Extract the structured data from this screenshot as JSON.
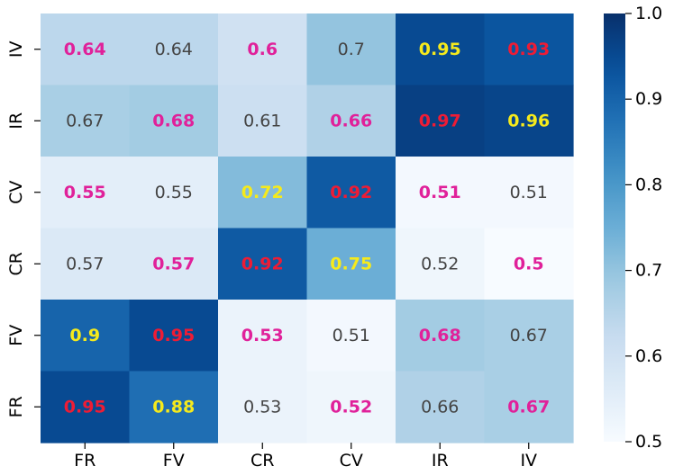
{
  "chart_data": {
    "type": "heatmap",
    "x_categories": [
      "FR",
      "FV",
      "CR",
      "CV",
      "IR",
      "IV"
    ],
    "y_categories": [
      "IV",
      "IR",
      "CV",
      "CR",
      "FV",
      "FR"
    ],
    "values": [
      [
        0.64,
        0.64,
        0.6,
        0.7,
        0.95,
        0.93
      ],
      [
        0.67,
        0.68,
        0.61,
        0.66,
        0.97,
        0.96
      ],
      [
        0.55,
        0.55,
        0.72,
        0.92,
        0.51,
        0.51
      ],
      [
        0.57,
        0.57,
        0.92,
        0.75,
        0.52,
        0.5
      ],
      [
        0.9,
        0.95,
        0.53,
        0.51,
        0.68,
        0.67
      ],
      [
        0.95,
        0.88,
        0.53,
        0.52,
        0.66,
        0.67
      ]
    ],
    "labels": [
      [
        "0.64",
        "0.64",
        "0.6",
        "0.7",
        "0.95",
        "0.93"
      ],
      [
        "0.67",
        "0.68",
        "0.61",
        "0.66",
        "0.97",
        "0.96"
      ],
      [
        "0.55",
        "0.55",
        "0.72",
        "0.92",
        "0.51",
        "0.51"
      ],
      [
        "0.57",
        "0.57",
        "0.92",
        "0.75",
        "0.52",
        "0.5"
      ],
      [
        "0.9",
        "0.95",
        "0.53",
        "0.51",
        "0.68",
        "0.67"
      ],
      [
        "0.95",
        "0.88",
        "0.53",
        "0.52",
        "0.66",
        "0.67"
      ]
    ],
    "label_style": [
      [
        "magenta",
        "plain",
        "magenta",
        "plain",
        "yellow",
        "red"
      ],
      [
        "plain",
        "magenta",
        "plain",
        "magenta",
        "red",
        "yellow"
      ],
      [
        "magenta",
        "plain",
        "yellow",
        "red",
        "magenta",
        "plain"
      ],
      [
        "plain",
        "magenta",
        "red",
        "yellow",
        "plain",
        "magenta"
      ],
      [
        "yellow",
        "red",
        "magenta",
        "plain",
        "magenta",
        "plain"
      ],
      [
        "red",
        "yellow",
        "plain",
        "magenta",
        "plain",
        "magenta"
      ]
    ],
    "label_colors": {
      "plain": "#444444",
      "magenta": "#e0219a",
      "yellow": "#f5ea1c",
      "red": "#ee1c35"
    },
    "colorbar": {
      "min": 0.5,
      "max": 1.0,
      "ticks": [
        0.5,
        0.6,
        0.7,
        0.8,
        0.9,
        1.0
      ],
      "tick_labels": [
        "0.5",
        "0.6",
        "0.7",
        "0.8",
        "0.9",
        "1.0"
      ],
      "colormap": "Blues"
    },
    "title": "",
    "xlabel": "",
    "ylabel": ""
  }
}
